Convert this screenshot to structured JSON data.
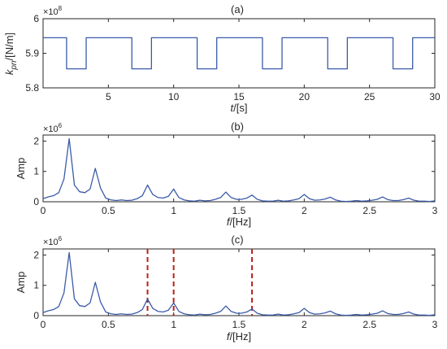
{
  "colors": {
    "series": "#3b5ba9",
    "marker": "#b5231a",
    "axis": "#262626"
  },
  "chart_data": [
    {
      "type": "line",
      "title": "(a)",
      "xlabel_italic": "t",
      "xlabel_rest": "/[s]",
      "ylabel_italic": "k",
      "ylabel_sub": "pn",
      "ylabel_rest": "/[N/m]",
      "exponent_base": "×10",
      "exponent_power": "8",
      "xlim": [
        0,
        30
      ],
      "ylim": [
        5.8,
        6.0
      ],
      "xticks": [
        5,
        10,
        15,
        20,
        25,
        30
      ],
      "xtick_labels": [
        "5",
        "10",
        "15",
        "20",
        "25",
        "30"
      ],
      "yticks": [
        5.8,
        5.9,
        6.0
      ],
      "ytick_labels": [
        "5.8",
        "5.9",
        "6"
      ],
      "grid": false,
      "x": [
        0,
        1.8,
        1.8,
        3.3,
        3.3,
        6.8,
        6.8,
        8.3,
        8.3,
        11.8,
        11.8,
        13.3,
        13.3,
        16.8,
        16.8,
        18.3,
        18.3,
        21.8,
        21.8,
        23.3,
        23.3,
        26.8,
        26.8,
        28.3,
        28.3,
        30
      ],
      "y": [
        5.945,
        5.945,
        5.855,
        5.855,
        5.945,
        5.945,
        5.855,
        5.855,
        5.945,
        5.945,
        5.855,
        5.855,
        5.945,
        5.945,
        5.855,
        5.855,
        5.945,
        5.945,
        5.855,
        5.855,
        5.945,
        5.945,
        5.855,
        5.855,
        5.945,
        5.945
      ]
    },
    {
      "type": "line",
      "title": "(b)",
      "xlabel_italic": "f",
      "xlabel_rest": "/[Hz]",
      "ylabel": "Amp",
      "exponent_base": "×10",
      "exponent_power": "6",
      "xlim": [
        0,
        3
      ],
      "ylim": [
        0,
        2.2
      ],
      "xticks": [
        0,
        0.5,
        1,
        1.5,
        2,
        2.5,
        3
      ],
      "xtick_labels": [
        "0",
        "0.5",
        "1",
        "1.5",
        "2",
        "2.5",
        "3"
      ],
      "yticks": [
        0,
        1,
        2
      ],
      "ytick_labels": [
        "0",
        "1",
        "2"
      ],
      "grid": false,
      "x": [
        0,
        0.04,
        0.08,
        0.12,
        0.16,
        0.2,
        0.24,
        0.28,
        0.32,
        0.36,
        0.4,
        0.44,
        0.48,
        0.52,
        0.56,
        0.6,
        0.64,
        0.68,
        0.72,
        0.76,
        0.8,
        0.84,
        0.88,
        0.92,
        0.96,
        1.0,
        1.04,
        1.08,
        1.12,
        1.16,
        1.2,
        1.24,
        1.28,
        1.32,
        1.36,
        1.4,
        1.44,
        1.48,
        1.52,
        1.56,
        1.6,
        1.64,
        1.68,
        1.72,
        1.76,
        1.8,
        1.84,
        1.88,
        1.92,
        1.96,
        2.0,
        2.04,
        2.08,
        2.12,
        2.16,
        2.2,
        2.24,
        2.28,
        2.32,
        2.36,
        2.4,
        2.44,
        2.48,
        2.52,
        2.56,
        2.6,
        2.64,
        2.68,
        2.72,
        2.76,
        2.8,
        2.84,
        2.88,
        2.92,
        2.96,
        3.0
      ],
      "y": [
        0.1,
        0.16,
        0.2,
        0.3,
        0.75,
        2.08,
        0.55,
        0.33,
        0.3,
        0.42,
        1.1,
        0.45,
        0.12,
        0.06,
        0.04,
        0.06,
        0.04,
        0.05,
        0.1,
        0.2,
        0.55,
        0.24,
        0.14,
        0.12,
        0.18,
        0.42,
        0.14,
        0.06,
        0.03,
        0.02,
        0.05,
        0.03,
        0.04,
        0.08,
        0.14,
        0.32,
        0.14,
        0.08,
        0.08,
        0.12,
        0.22,
        0.08,
        0.03,
        0.02,
        0.02,
        0.05,
        0.02,
        0.03,
        0.06,
        0.1,
        0.24,
        0.1,
        0.05,
        0.06,
        0.09,
        0.15,
        0.06,
        0.02,
        0.01,
        0.02,
        0.04,
        0.02,
        0.03,
        0.05,
        0.08,
        0.16,
        0.07,
        0.04,
        0.04,
        0.07,
        0.12,
        0.05,
        0.02,
        0.02,
        0.01,
        0.03
      ]
    },
    {
      "type": "line",
      "title": "(c)",
      "xlabel_italic": "f",
      "xlabel_rest": "/[Hz]",
      "ylabel": "Amp",
      "exponent_base": "×10",
      "exponent_power": "6",
      "xlim": [
        0,
        3
      ],
      "ylim": [
        0,
        2.2
      ],
      "xticks": [
        0,
        0.5,
        1,
        1.5,
        2,
        2.5,
        3
      ],
      "xtick_labels": [
        "0",
        "0.5",
        "1",
        "1.5",
        "2",
        "2.5",
        "3"
      ],
      "yticks": [
        0,
        1,
        2
      ],
      "ytick_labels": [
        "0",
        "1",
        "2"
      ],
      "grid": false,
      "markers_x": [
        0.8,
        1.0,
        1.6
      ],
      "x": [
        0,
        0.04,
        0.08,
        0.12,
        0.16,
        0.2,
        0.24,
        0.28,
        0.32,
        0.36,
        0.4,
        0.44,
        0.48,
        0.52,
        0.56,
        0.6,
        0.64,
        0.68,
        0.72,
        0.76,
        0.8,
        0.84,
        0.88,
        0.92,
        0.96,
        1.0,
        1.04,
        1.08,
        1.12,
        1.16,
        1.2,
        1.24,
        1.28,
        1.32,
        1.36,
        1.4,
        1.44,
        1.48,
        1.52,
        1.56,
        1.6,
        1.64,
        1.68,
        1.72,
        1.76,
        1.8,
        1.84,
        1.88,
        1.92,
        1.96,
        2.0,
        2.04,
        2.08,
        2.12,
        2.16,
        2.2,
        2.24,
        2.28,
        2.32,
        2.36,
        2.4,
        2.44,
        2.48,
        2.52,
        2.56,
        2.6,
        2.64,
        2.68,
        2.72,
        2.76,
        2.8,
        2.84,
        2.88,
        2.92,
        2.96,
        3.0
      ],
      "y": [
        0.1,
        0.16,
        0.2,
        0.3,
        0.75,
        2.08,
        0.55,
        0.33,
        0.3,
        0.42,
        1.1,
        0.45,
        0.12,
        0.06,
        0.04,
        0.06,
        0.04,
        0.05,
        0.1,
        0.2,
        0.55,
        0.24,
        0.14,
        0.12,
        0.18,
        0.42,
        0.14,
        0.06,
        0.03,
        0.02,
        0.05,
        0.03,
        0.04,
        0.08,
        0.14,
        0.32,
        0.14,
        0.08,
        0.08,
        0.12,
        0.22,
        0.08,
        0.03,
        0.02,
        0.02,
        0.05,
        0.02,
        0.03,
        0.06,
        0.1,
        0.24,
        0.1,
        0.05,
        0.06,
        0.09,
        0.15,
        0.06,
        0.02,
        0.01,
        0.02,
        0.04,
        0.02,
        0.03,
        0.05,
        0.08,
        0.16,
        0.07,
        0.04,
        0.04,
        0.07,
        0.12,
        0.05,
        0.02,
        0.02,
        0.01,
        0.03
      ]
    }
  ]
}
